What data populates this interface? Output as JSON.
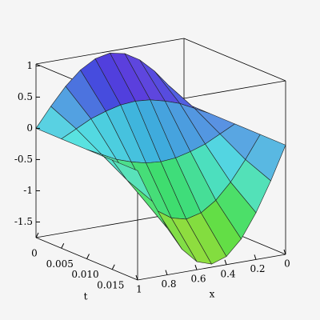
{
  "chart_data": {
    "type": "surface",
    "x": [
      0,
      0.1,
      0.2,
      0.3,
      0.4,
      0.5,
      0.6,
      0.7,
      0.8,
      0.9,
      1
    ],
    "t": [
      0,
      0.005,
      0.01,
      0.015,
      0.02
    ],
    "z": [
      [
        0,
        0.31,
        0.59,
        0.81,
        0.95,
        1,
        0.95,
        0.81,
        0.59,
        0.31,
        0
      ],
      [
        0,
        0.12,
        0.24,
        0.32,
        0.38,
        0.4,
        0.38,
        0.32,
        0.24,
        0.12,
        0
      ],
      [
        0,
        -0.12,
        -0.24,
        -0.32,
        -0.38,
        -0.4,
        -0.38,
        -0.32,
        -0.24,
        -0.12,
        0
      ],
      [
        0,
        -0.36,
        -0.68,
        -0.93,
        -1.09,
        -1.15,
        -1.09,
        -0.93,
        -0.68,
        -0.36,
        0
      ],
      [
        0,
        -0.53,
        -1,
        -1.38,
        -1.62,
        -1.7,
        -1.62,
        -1.38,
        -1,
        -0.53,
        0
      ]
    ],
    "xlabel": "x",
    "tlabel": "t",
    "xlim": [
      0,
      1
    ],
    "tlim": [
      0,
      0.02
    ],
    "zlim": [
      -1.75,
      1.03
    ],
    "xticks": [
      1,
      0.8,
      0.6,
      0.4,
      0.2,
      0
    ],
    "tticks": [
      0,
      0.005,
      {
        "value": 0.01,
        "label": "0.010"
      },
      0.015
    ],
    "zticks": [
      1,
      0.5,
      0,
      -0.5,
      -1,
      -1.5
    ]
  }
}
